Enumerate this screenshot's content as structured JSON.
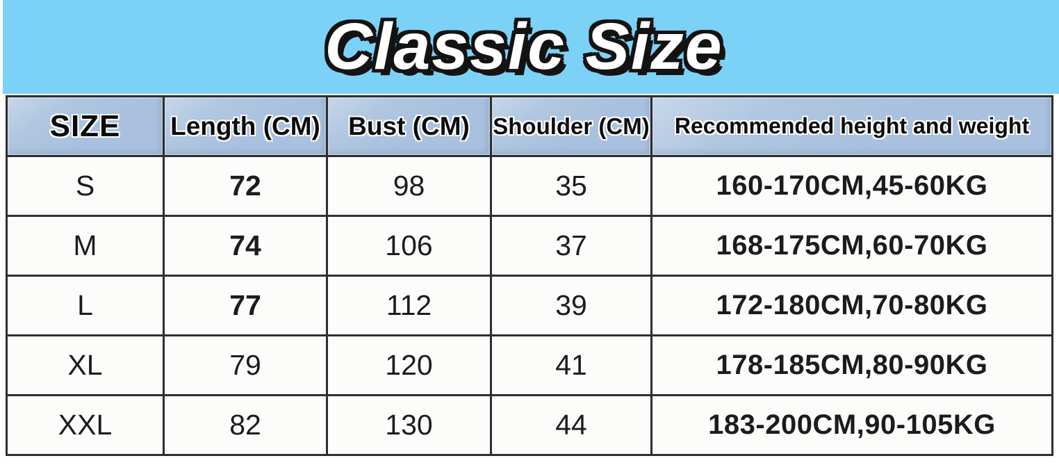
{
  "banner": {
    "title": "Classic Size"
  },
  "table": {
    "headers": [
      "SIZE",
      "Length (CM)",
      "Bust (CM)",
      "Shoulder (CM)",
      "Recommended height and weight"
    ],
    "rows": [
      {
        "size": "S",
        "length": "72",
        "bust": "98",
        "shoulder": "35",
        "recommend": "160-170CM,45-60KG",
        "length_bold": true
      },
      {
        "size": "M",
        "length": "74",
        "bust": "106",
        "shoulder": "37",
        "recommend": "168-175CM,60-70KG",
        "length_bold": true
      },
      {
        "size": "L",
        "length": "77",
        "bust": "112",
        "shoulder": "39",
        "recommend": "172-180CM,70-80KG",
        "length_bold": true
      },
      {
        "size": "XL",
        "length": "79",
        "bust": "120",
        "shoulder": "41",
        "recommend": "178-185CM,80-90KG",
        "length_bold": false
      },
      {
        "size": "XXL",
        "length": "82",
        "bust": "130",
        "shoulder": "44",
        "recommend": "183-200CM,90-105KG",
        "length_bold": false
      }
    ]
  },
  "colors": {
    "banner_blue": "#7cd2f6",
    "header_fill": "#a9c1de",
    "border_dark": "#2e2e2e",
    "title_fill": "#ffffff",
    "title_outline": "#131313",
    "text": "#1c1c1c"
  },
  "chart_data": {
    "type": "table",
    "title": "Classic Size",
    "columns": [
      "SIZE",
      "Length (CM)",
      "Bust (CM)",
      "Shoulder (CM)",
      "Recommended height and weight"
    ],
    "rows": [
      [
        "S",
        72,
        98,
        35,
        "160-170CM,45-60KG"
      ],
      [
        "M",
        74,
        106,
        37,
        "168-175CM,60-70KG"
      ],
      [
        "L",
        77,
        112,
        39,
        "172-180CM,70-80KG"
      ],
      [
        "XL",
        79,
        120,
        41,
        "178-185CM,80-90KG"
      ],
      [
        "XXL",
        82,
        130,
        44,
        "183-200CM,90-105KG"
      ]
    ]
  }
}
